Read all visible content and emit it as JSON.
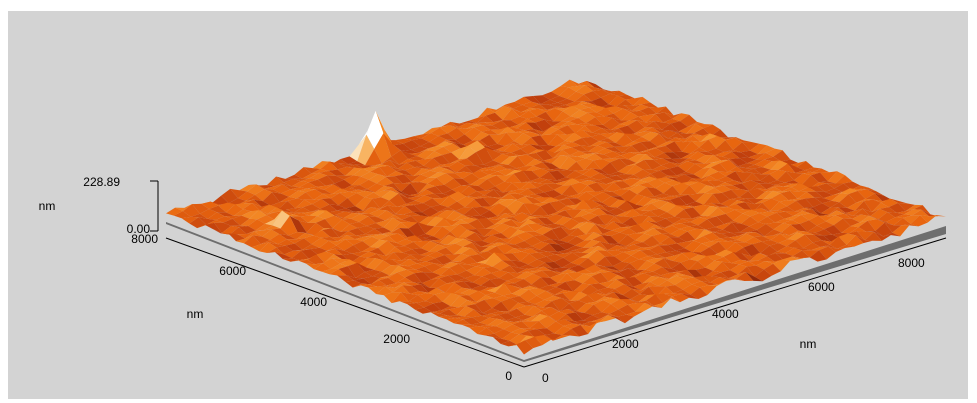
{
  "chart_data": {
    "type": "surface",
    "z_axis": {
      "label": "nm",
      "ticks": [
        "0.00",
        "228.89"
      ],
      "range": [
        0.0,
        228.89
      ]
    },
    "y_axis": {
      "label": "nm",
      "ticks": [
        "0",
        "2000",
        "4000",
        "6000",
        "8000"
      ],
      "range": [
        0,
        8800
      ]
    },
    "x_axis": {
      "label": "nm",
      "ticks": [
        "0",
        "2000",
        "4000",
        "6000",
        "8000"
      ],
      "range": [
        0,
        9000
      ]
    },
    "colormap": [
      "#7a1e08",
      "#c2400d",
      "#e8650f",
      "#f5902a",
      "#f8b868",
      "#fde8c6",
      "#ffffff"
    ],
    "background": "#d3d3d3",
    "base_color": "#6e6e6e",
    "peaks": [
      {
        "x": 4300,
        "y": 8600,
        "height": 228.89
      },
      {
        "x": 1000,
        "y": 7000,
        "height": 120
      },
      {
        "x": 5400,
        "y": 7400,
        "height": 110
      },
      {
        "x": 2400,
        "y": 3400,
        "height": 90
      },
      {
        "x": 1600,
        "y": 2300,
        "height": 80
      }
    ]
  }
}
